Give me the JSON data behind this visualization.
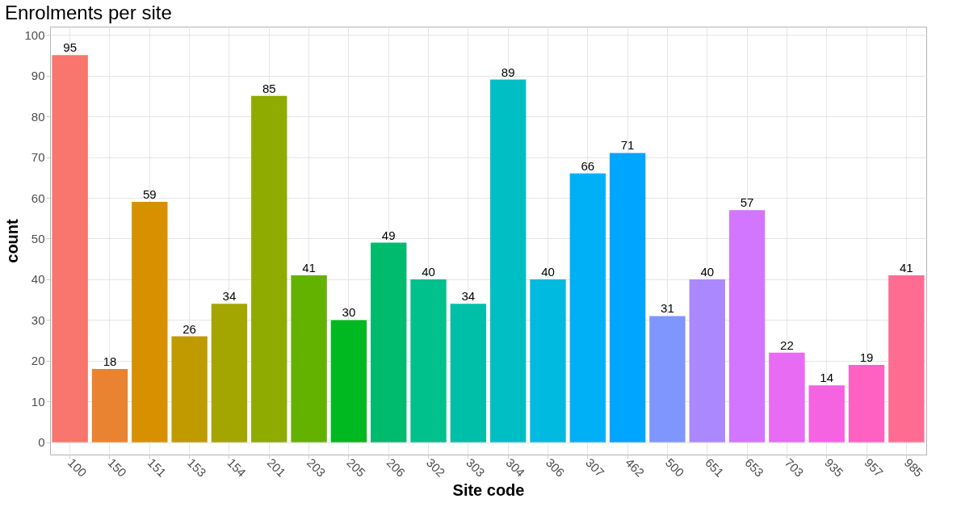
{
  "chart_data": {
    "type": "bar",
    "title": "Enrolments per site",
    "xlabel": "Site code",
    "ylabel": "count",
    "categories": [
      "100",
      "150",
      "151",
      "153",
      "154",
      "201",
      "203",
      "205",
      "206",
      "302",
      "303",
      "304",
      "306",
      "307",
      "462",
      "500",
      "651",
      "653",
      "703",
      "935",
      "957",
      "985"
    ],
    "values": [
      95,
      18,
      59,
      26,
      34,
      85,
      41,
      30,
      49,
      40,
      34,
      89,
      40,
      66,
      71,
      31,
      40,
      57,
      22,
      14,
      19,
      41
    ],
    "colors": [
      "#f8766d",
      "#ea8331",
      "#d89000",
      "#c09b00",
      "#a3a500",
      "#8fab00",
      "#64b200",
      "#00b81f",
      "#00bb6e",
      "#00c08b",
      "#00bfa8",
      "#00bfc4",
      "#00bae0",
      "#00b0f6",
      "#00a5ff",
      "#7f96ff",
      "#ac88ff",
      "#d376ff",
      "#e76bf3",
      "#f563e3",
      "#ff61c3",
      "#ff6c91"
    ],
    "ylim": [
      -3,
      102
    ],
    "yticks": [
      0,
      10,
      20,
      30,
      40,
      50,
      60,
      70,
      80,
      90,
      100
    ],
    "grid": true,
    "data_labels": true
  }
}
